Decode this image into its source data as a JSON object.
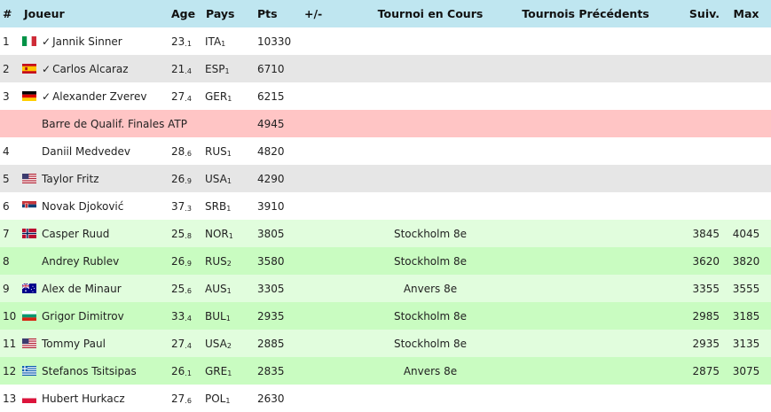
{
  "headers": {
    "rank": "#",
    "player": "Joueur",
    "age": "Age",
    "country": "Pays",
    "points": "Pts",
    "diff": "+/-",
    "current": "Tournoi en Cours",
    "previous": "Tournois Précédents",
    "next": "Suiv.",
    "max": "Max"
  },
  "check_mark": "✓",
  "players": [
    {
      "rank": "1",
      "name": "Jannik Sinner",
      "age": "23",
      "age_dec": "1",
      "country": "ITA",
      "country_idx": "1",
      "pts": "10330",
      "current": "",
      "next": "",
      "max": "",
      "flag": "italy-flag-icon",
      "check": true
    },
    {
      "rank": "2",
      "name": "Carlos Alcaraz",
      "age": "21",
      "age_dec": "4",
      "country": "ESP",
      "country_idx": "1",
      "pts": "6710",
      "current": "",
      "next": "",
      "max": "",
      "flag": "spain-flag-icon",
      "check": true
    },
    {
      "rank": "3",
      "name": "Alexander Zverev",
      "age": "27",
      "age_dec": "4",
      "country": "GER",
      "country_idx": "1",
      "pts": "6215",
      "current": "",
      "next": "",
      "max": "",
      "flag": "germany-flag-icon",
      "check": true
    },
    {
      "rank": "4",
      "name": "Daniil Medvedev",
      "age": "28",
      "age_dec": "6",
      "country": "RUS",
      "country_idx": "1",
      "pts": "4820",
      "current": "",
      "next": "",
      "max": "",
      "flag": "",
      "check": false
    },
    {
      "rank": "5",
      "name": "Taylor Fritz",
      "age": "26",
      "age_dec": "9",
      "country": "USA",
      "country_idx": "1",
      "pts": "4290",
      "current": "",
      "next": "",
      "max": "",
      "flag": "usa-flag-icon",
      "check": false
    },
    {
      "rank": "6",
      "name": "Novak Djoković",
      "age": "37",
      "age_dec": "3",
      "country": "SRB",
      "country_idx": "1",
      "pts": "3910",
      "current": "",
      "next": "",
      "max": "",
      "flag": "serbia-flag-icon",
      "check": false
    },
    {
      "rank": "7",
      "name": "Casper Ruud",
      "age": "25",
      "age_dec": "8",
      "country": "NOR",
      "country_idx": "1",
      "pts": "3805",
      "current": "Stockholm 8e",
      "next": "3845",
      "max": "4045",
      "flag": "norway-flag-icon",
      "check": false
    },
    {
      "rank": "8",
      "name": "Andrey Rublev",
      "age": "26",
      "age_dec": "9",
      "country": "RUS",
      "country_idx": "2",
      "pts": "3580",
      "current": "Stockholm 8e",
      "next": "3620",
      "max": "3820",
      "flag": "",
      "check": false
    },
    {
      "rank": "9",
      "name": "Alex de Minaur",
      "age": "25",
      "age_dec": "6",
      "country": "AUS",
      "country_idx": "1",
      "pts": "3305",
      "current": "Anvers 8e",
      "next": "3355",
      "max": "3555",
      "flag": "australia-flag-icon",
      "check": false
    },
    {
      "rank": "10",
      "name": "Grigor Dimitrov",
      "age": "33",
      "age_dec": "4",
      "country": "BUL",
      "country_idx": "1",
      "pts": "2935",
      "current": "Stockholm 8e",
      "next": "2985",
      "max": "3185",
      "flag": "bulgaria-flag-icon",
      "check": false
    },
    {
      "rank": "11",
      "name": "Tommy Paul",
      "age": "27",
      "age_dec": "4",
      "country": "USA",
      "country_idx": "2",
      "pts": "2885",
      "current": "Stockholm 8e",
      "next": "2935",
      "max": "3135",
      "flag": "usa-flag-icon",
      "check": false
    },
    {
      "rank": "12",
      "name": "Stefanos Tsitsipas",
      "age": "26",
      "age_dec": "1",
      "country": "GRE",
      "country_idx": "1",
      "pts": "2835",
      "current": "Anvers 8e",
      "next": "2875",
      "max": "3075",
      "flag": "greece-flag-icon",
      "check": false
    },
    {
      "rank": "13",
      "name": "Hubert Hurkacz",
      "age": "27",
      "age_dec": "6",
      "country": "POL",
      "country_idx": "1",
      "pts": "2630",
      "current": "",
      "next": "",
      "max": "",
      "flag": "poland-flag-icon",
      "check": false
    }
  ],
  "qualification": {
    "label": "Barre de Qualif. Finales ATP",
    "pts": "4945"
  },
  "colors": {
    "header_bg": "#bfe6f0",
    "white_row": "#ffffff",
    "grey_row": "#e6e6e6",
    "qual_row": "#ffc5c5",
    "light_green_row": "#e1fddd",
    "green_row": "#c9fcc1"
  }
}
